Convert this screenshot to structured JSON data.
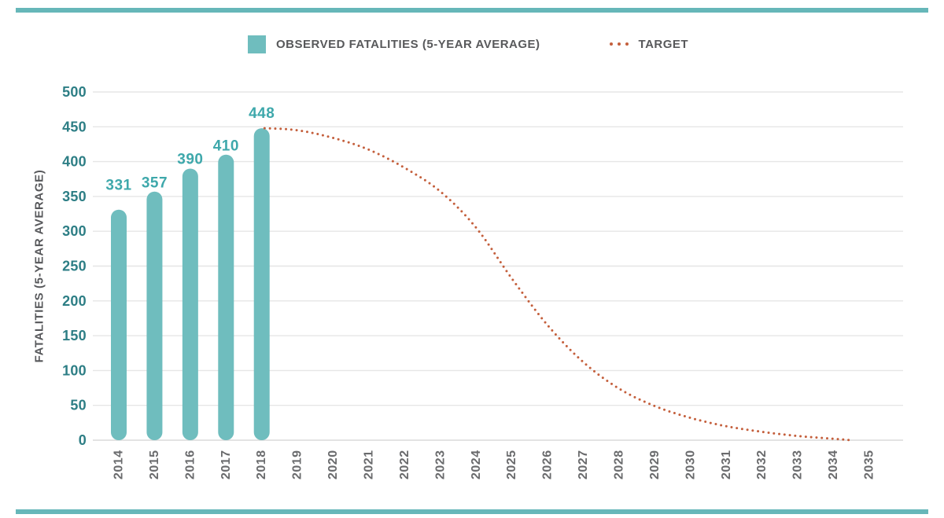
{
  "colors": {
    "bar_teal": "#6fbdbe",
    "rule_teal": "#66b7b9",
    "value_label_teal": "#3ea8ab",
    "ytick_teal": "#2d7e85",
    "axis_title_gray": "#57585b",
    "legend_text_gray": "#58595b",
    "xlabel_gray": "#6a6b6d",
    "gridline_gray": "#e6e6e6",
    "axis_line_gray": "#dadada",
    "target_orange": "#c45f3c"
  },
  "legend": {
    "observed_label": "OBSERVED FATALITIES (5-YEAR AVERAGE)",
    "observed_icon": "teal-square-swatch-icon",
    "target_label": "TARGET",
    "target_icon": "dotted-line-icon"
  },
  "chart_data": {
    "type": "bar",
    "title": "",
    "xlabel": "",
    "ylabel": "FATALITIES (5-YEAR AVERAGE)",
    "ylim": [
      0,
      500
    ],
    "ytick_step": 50,
    "grid": true,
    "legend_position": "top",
    "categories": [
      "2014",
      "2015",
      "2016",
      "2017",
      "2018",
      "2019",
      "2020",
      "2021",
      "2022",
      "2023",
      "2024",
      "2025",
      "2026",
      "2027",
      "2028",
      "2029",
      "2030",
      "2031",
      "2032",
      "2033",
      "2034",
      "2035"
    ],
    "series": [
      {
        "name": "OBSERVED FATALITIES (5-YEAR AVERAGE)",
        "type": "bar",
        "color": "#6fbdbe",
        "x": [
          2014,
          2015,
          2016,
          2017,
          2018
        ],
        "values": [
          331,
          357,
          390,
          410,
          448
        ],
        "data_labels": [
          "331",
          "357",
          "390",
          "410",
          "448"
        ]
      },
      {
        "name": "TARGET",
        "type": "dotted-line",
        "color": "#c45f3c",
        "points": [
          [
            2018.08,
            448
          ],
          [
            2019,
            445
          ],
          [
            2020,
            434
          ],
          [
            2021,
            417
          ],
          [
            2022,
            391
          ],
          [
            2023,
            357
          ],
          [
            2024,
            305
          ],
          [
            2025,
            232
          ],
          [
            2026,
            165
          ],
          [
            2027,
            112
          ],
          [
            2028,
            74
          ],
          [
            2029,
            49
          ],
          [
            2030,
            32
          ],
          [
            2031,
            20
          ],
          [
            2032,
            12
          ],
          [
            2033,
            6
          ],
          [
            2034,
            2
          ],
          [
            2034.5,
            0
          ]
        ]
      }
    ]
  }
}
